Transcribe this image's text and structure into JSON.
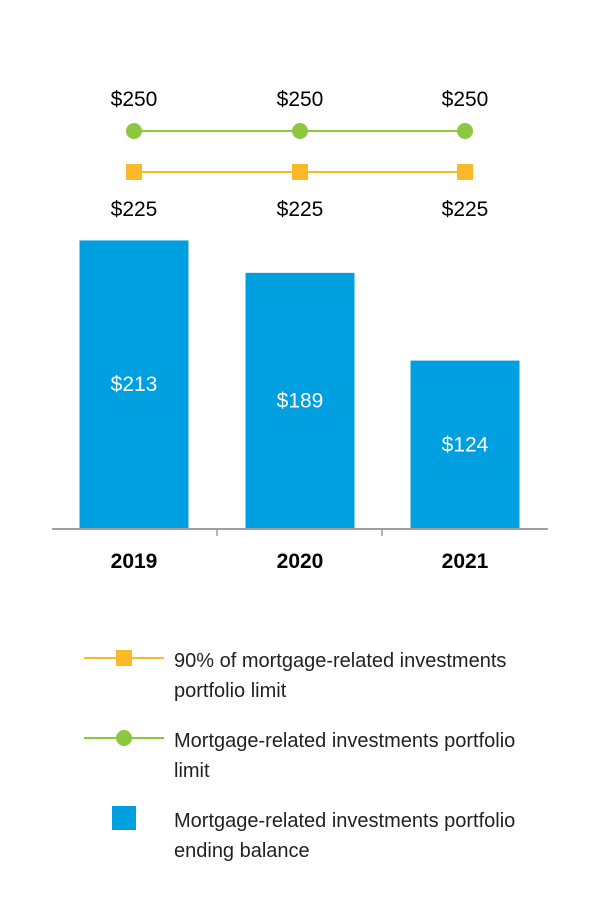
{
  "chart_data": {
    "type": "bar",
    "categories": [
      "2019",
      "2020",
      "2021"
    ],
    "series": [
      {
        "name": "Mortgage-related investments portfolio ending balance",
        "kind": "bar",
        "values": [
          213,
          189,
          124
        ],
        "labels": [
          "$213",
          "$189",
          "$124"
        ],
        "color": "#009fdf"
      },
      {
        "name": "Mortgage-related investments portfolio limit",
        "kind": "line",
        "marker": "circle",
        "values": [
          250,
          250,
          250
        ],
        "labels": [
          "$250",
          "$250",
          "$250"
        ],
        "color": "#8dc63f"
      },
      {
        "name": "90% of mortgage-related investments portfolio limit",
        "kind": "line",
        "marker": "square",
        "values": [
          225,
          225,
          225
        ],
        "labels": [
          "$225",
          "$225",
          "$225"
        ],
        "color": "#fbb829"
      }
    ],
    "axis_color": "#9e9e9e",
    "grid": false,
    "legend_position": "bottom"
  },
  "legend": {
    "items": [
      {
        "marker": "square-line",
        "color": "#fbb829",
        "line1": "90% of mortgage-related investments",
        "line2": "portfolio limit"
      },
      {
        "marker": "circle-line",
        "color": "#8dc63f",
        "line1": "Mortgage-related investments portfolio",
        "line2": "limit"
      },
      {
        "marker": "square",
        "color": "#009fdf",
        "line1": "Mortgage-related investments portfolio",
        "line2": "ending balance"
      }
    ]
  }
}
